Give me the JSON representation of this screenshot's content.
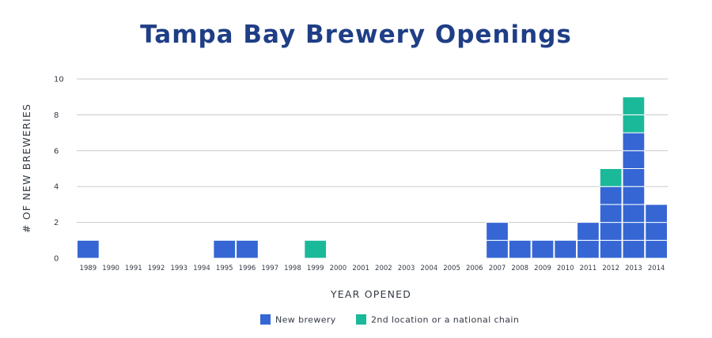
{
  "colors": {
    "title": "#1f3e86",
    "new_brewery": "#3566d4",
    "second_location": "#1ab99a",
    "grid": "#c8c8c8",
    "text": "#333a44"
  },
  "chart_data": {
    "type": "bar",
    "stacked": true,
    "unit_blocks": true,
    "title": "Tampa Bay Brewery Openings",
    "xlabel": "YEAR OPENED",
    "ylabel": "# OF NEW BREWERIES",
    "ylim": [
      0,
      10
    ],
    "yticks": [
      "0",
      "2",
      "4",
      "6",
      "8",
      "10"
    ],
    "grid": true,
    "legend_position": "bottom-center",
    "categories": [
      "1989",
      "1990",
      "1991",
      "1992",
      "1993",
      "1994",
      "1995",
      "1996",
      "1997",
      "1998",
      "1999",
      "2000",
      "2001",
      "2002",
      "2003",
      "2004",
      "2005",
      "2006",
      "2007",
      "2008",
      "2009",
      "2010",
      "2011",
      "2012",
      "2013",
      "2014"
    ],
    "series": [
      {
        "name": "New brewery",
        "color": "#3566d4",
        "values": [
          1,
          0,
          0,
          0,
          0,
          0,
          1,
          1,
          0,
          0,
          0,
          0,
          0,
          0,
          0,
          0,
          0,
          0,
          2,
          1,
          1,
          1,
          2,
          4,
          7,
          3
        ]
      },
      {
        "name": "2nd location or a national chain",
        "color": "#1ab99a",
        "values": [
          0,
          0,
          0,
          0,
          0,
          0,
          0,
          0,
          0,
          0,
          1,
          0,
          0,
          0,
          0,
          0,
          0,
          0,
          0,
          0,
          0,
          0,
          0,
          1,
          2,
          0
        ]
      }
    ]
  }
}
